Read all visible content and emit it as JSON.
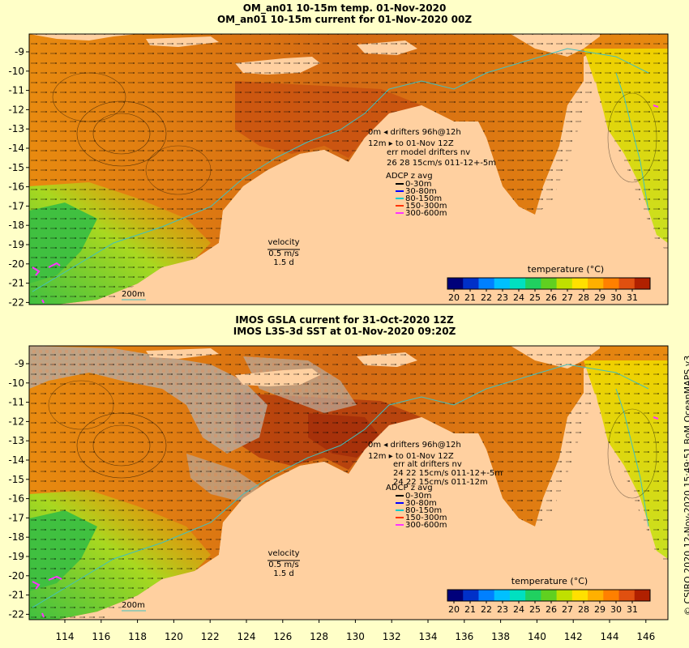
{
  "top_panel": {
    "title_line1": "OM_an01 10-15m temp. 01-Nov-2020",
    "title_line2": "OM_an01 10-15m current for 01-Nov-2020 00Z",
    "drifter_line1": "0m ◂ drifters 96h@12h",
    "drifter_line2": "12m ▸ to 01-Nov 12Z",
    "drifter_line3": "err model drifters nv",
    "drifter_line4": "26 28 15cm/s 011-12+-5m",
    "velocity_label": "velocity",
    "velocity_value": "0.5 m/s",
    "velocity_time": "1.5 d",
    "contour_label": "200m",
    "colorbar_title": "temperature (°C)"
  },
  "bottom_panel": {
    "title_line1": "IMOS GSLA current for 31-Oct-2020 12Z",
    "title_line2": "IMOS L3S-3d SST at 01-Nov-2020 09:20Z",
    "drifter_line1": "0m ◂ drifters 96h@12h",
    "drifter_line2": "12m ▸ to 01-Nov 12Z",
    "drifter_line3": "err alt drifters nv",
    "drifter_line4": "24 22 15cm/s 011-12+-5m",
    "drifter_line5": "24 22 15cm/s 011-12m",
    "velocity_label": "velocity",
    "velocity_value": "0.5 m/s",
    "velocity_time": "1.5 d",
    "contour_label": "200m",
    "colorbar_title": "temperature (°C)"
  },
  "adcp": {
    "title": "ADCP z avg",
    "items": [
      {
        "label": "0-30m",
        "color": "#000000"
      },
      {
        "label": "30-80m",
        "color": "#0000ff"
      },
      {
        "label": "80-150m",
        "color": "#00cccc"
      },
      {
        "label": "150-300m",
        "color": "#ff3300"
      },
      {
        "label": "300-600m",
        "color": "#ff33ff"
      }
    ]
  },
  "lat_ticks": [
    "-9",
    "-10",
    "-11",
    "-12",
    "-13",
    "-14",
    "-15",
    "-16",
    "-17",
    "-18",
    "-19",
    "-20",
    "-21",
    "-22"
  ],
  "lon_ticks": [
    "114",
    "116",
    "118",
    "120",
    "122",
    "124",
    "126",
    "128",
    "130",
    "132",
    "134",
    "136",
    "138",
    "140",
    "142",
    "144",
    "146"
  ],
  "colorbar_ticks": [
    "20",
    "21",
    "22",
    "23",
    "24",
    "25",
    "26",
    "27",
    "28",
    "29",
    "30",
    "31"
  ],
  "colorbar_colors": [
    "#00007a",
    "#0030c8",
    "#0080ff",
    "#00c0ff",
    "#00e0c0",
    "#20d060",
    "#60d020",
    "#c0e000",
    "#ffe000",
    "#ffb000",
    "#ff8000",
    "#e05010",
    "#b02000"
  ],
  "credit": "© CSIRO 2020   12-Nov-2020 15:49:51 BoM OceanMAPS v3",
  "colors": {
    "land": "#ffd0a0",
    "background": "#ffffc8",
    "warm_ocean": "#e87e10",
    "hot_ocean": "#c04a10",
    "mid_ocean": "#f0a000",
    "cool_ocean": "#a0d820",
    "cold_ocean": "#40c040",
    "cloud": "#b0a090",
    "coast_line": "#40c0c0"
  }
}
